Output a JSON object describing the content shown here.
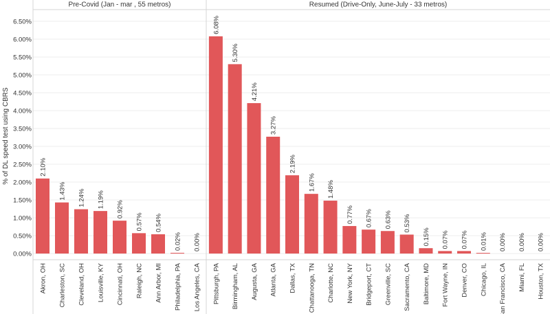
{
  "chart_data": {
    "type": "bar",
    "ylabel": "% of DL speed test using CBRS",
    "ylim": [
      0,
      6.5
    ],
    "yticks": [
      "0.00%",
      "0.50%",
      "1.00%",
      "1.50%",
      "2.00%",
      "2.50%",
      "3.00%",
      "3.50%",
      "4.00%",
      "4.50%",
      "5.00%",
      "5.50%",
      "6.00%",
      "6.50%"
    ],
    "grid": true,
    "bar_color": "#e15759",
    "panels": [
      {
        "title": "Pre-Covid (Jan - mar , 55 metros)",
        "categories": [
          "Akron, OH",
          "Charleston, SC",
          "Cleveland, OH",
          "Louisville, KY",
          "Cincinnati, OH",
          "Raleigh, NC",
          "Ann Arbor, MI",
          "Philadelphia, PA",
          "Los Angeles, CA"
        ],
        "values": [
          2.1,
          1.43,
          1.24,
          1.19,
          0.92,
          0.57,
          0.54,
          0.02,
          0.0
        ],
        "labels": [
          "2.10%",
          "1.43%",
          "1.24%",
          "1.19%",
          "0.92%",
          "0.57%",
          "0.54%",
          "0.02%",
          "0.00%"
        ]
      },
      {
        "title": "Resumed (Drive-Only, June-July - 33 metros)",
        "categories": [
          "Pittsburgh, PA",
          "Birmingham, AL",
          "Augusta, GA",
          "Atlanta, GA",
          "Dallas, TX",
          "Chattanooga, TN",
          "Charlotte, NC",
          "New York, NY",
          "Bridgeport, CT",
          "Greenville, SC",
          "Sacramento, CA",
          "Baltimore, MD",
          "Fort Wayne, IN",
          "Denver, CO",
          "Chicago, IL",
          "San Francisco, CA",
          "Miami, FL",
          "Houston, TX"
        ],
        "values": [
          6.08,
          5.3,
          4.21,
          3.27,
          2.19,
          1.67,
          1.48,
          0.77,
          0.67,
          0.63,
          0.53,
          0.15,
          0.07,
          0.07,
          0.01,
          0.0,
          0.0,
          0.0
        ],
        "labels": [
          "6.08%",
          "5.30%",
          "4.21%",
          "3.27%",
          "2.19%",
          "1.67%",
          "1.48%",
          "0.77%",
          "0.67%",
          "0.63%",
          "0.53%",
          "0.15%",
          "0.07%",
          "0.07%",
          "0.01%",
          "0.00%",
          "0.00%",
          "0.00%"
        ]
      }
    ]
  }
}
